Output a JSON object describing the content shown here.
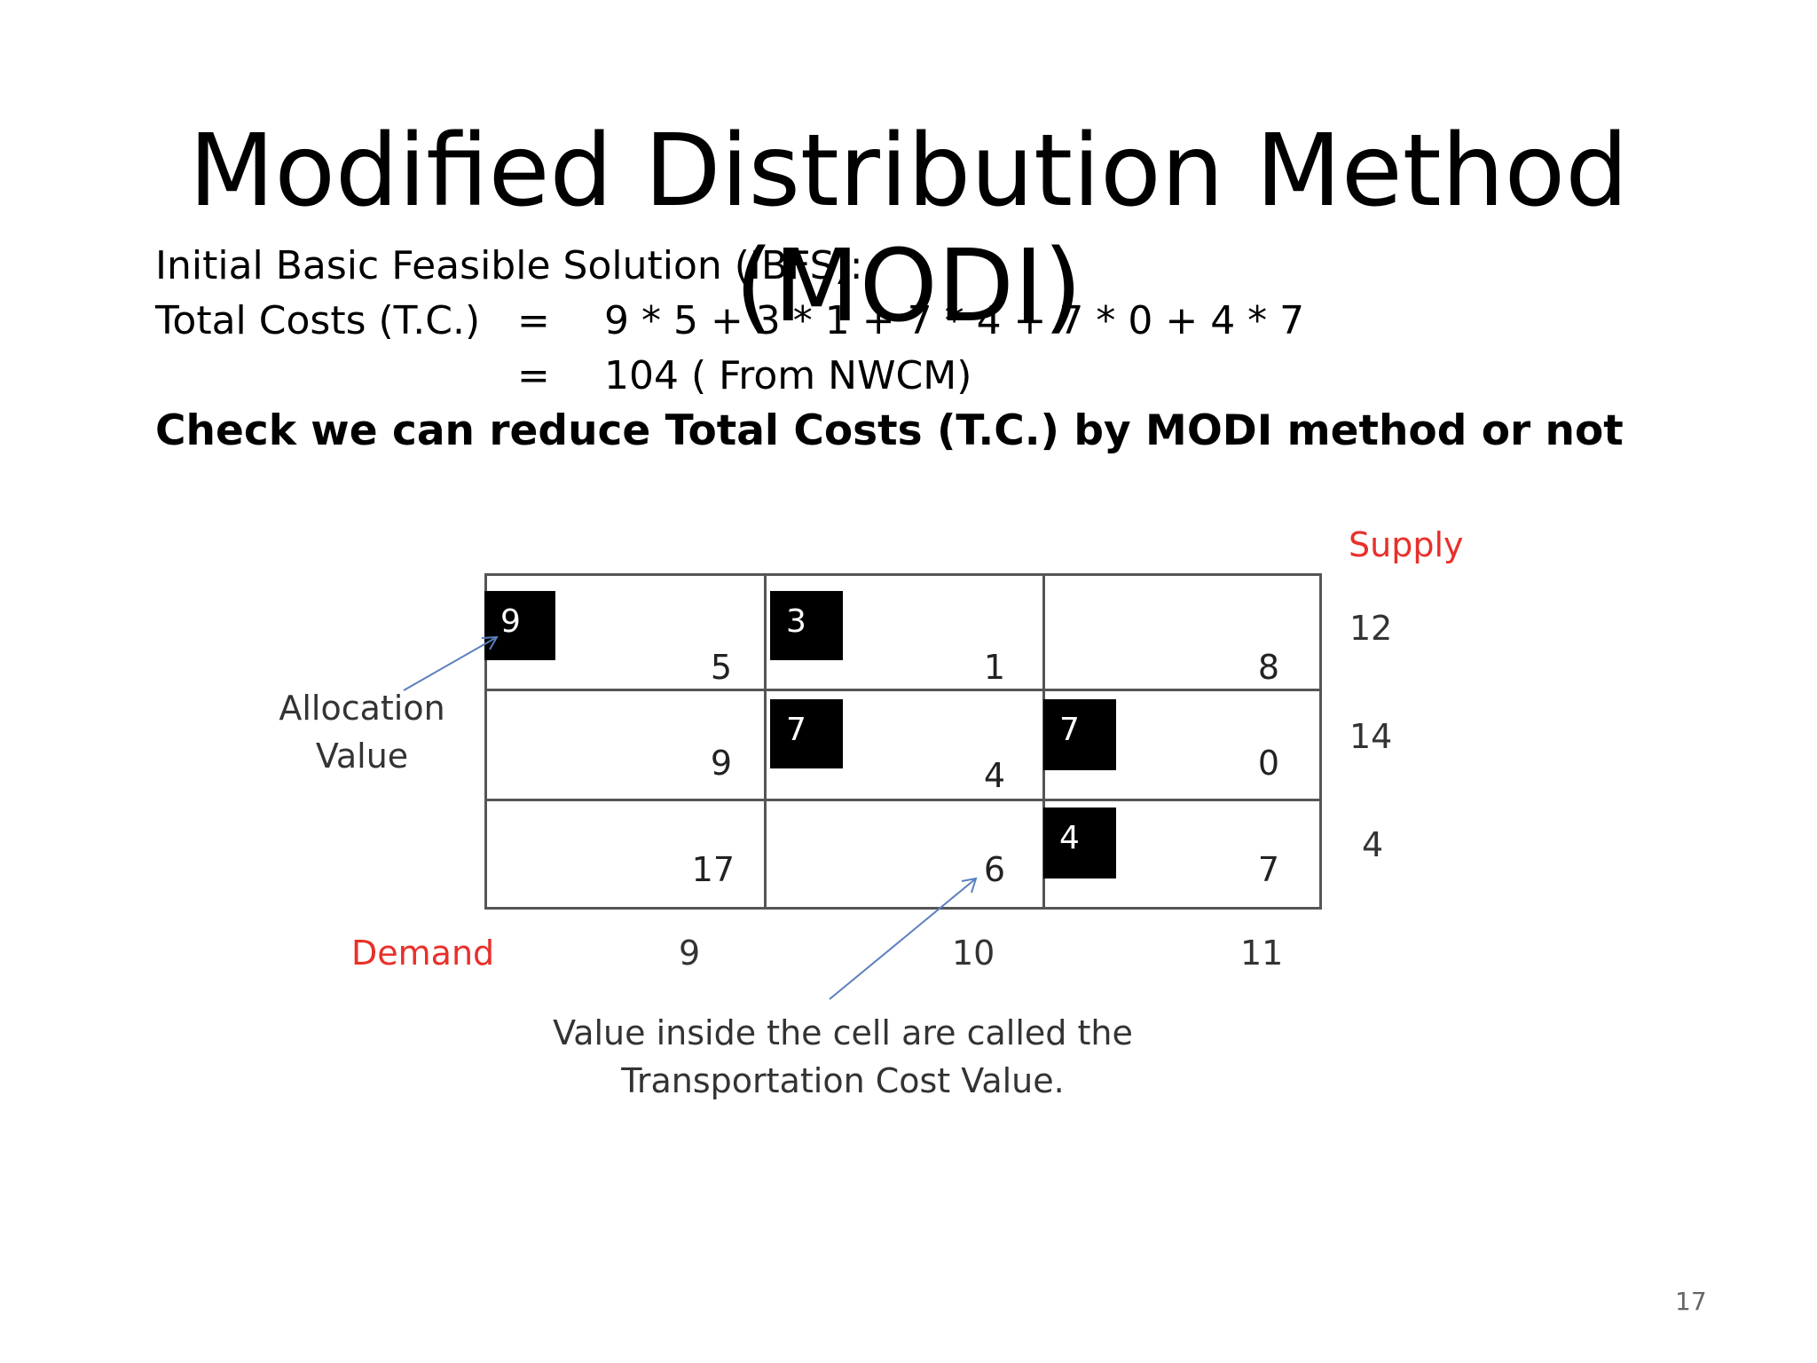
{
  "title": "Modified Distribution Method (MODI)",
  "intro": {
    "ibfs_label": "Initial Basic Feasible Solution (IBFS):",
    "tc_label": "Total Costs (T.C.)",
    "eq_sign": "=",
    "expression": "9 * 5 + 3 * 1 + 7 * 4 + 7 * 0 + 4 * 7",
    "result": "104 ( From NWCM)",
    "check_line": "Check we can reduce Total Costs (T.C.) by MODI method or not"
  },
  "table": {
    "supply_label": "Supply",
    "demand_label": "Demand",
    "supply": [
      "12",
      "14",
      "4"
    ],
    "demand": [
      "9",
      "10",
      "11"
    ],
    "costs": [
      [
        "5",
        "1",
        "8"
      ],
      [
        "9",
        "4",
        "0"
      ],
      [
        "17",
        "6",
        "7"
      ]
    ],
    "allocations": [
      [
        "9",
        "3",
        ""
      ],
      [
        "",
        "7",
        "7"
      ],
      [
        "",
        "",
        "4"
      ]
    ]
  },
  "annotations": {
    "allocation_line1": "Allocation",
    "allocation_line2": "Value",
    "cost_line1": "Value inside the cell are called the",
    "cost_line2": "Transportation Cost Value."
  },
  "colors": {
    "accent_red": "#e8302a",
    "arrow_blue": "#5b7fbf"
  },
  "page_number": "17"
}
